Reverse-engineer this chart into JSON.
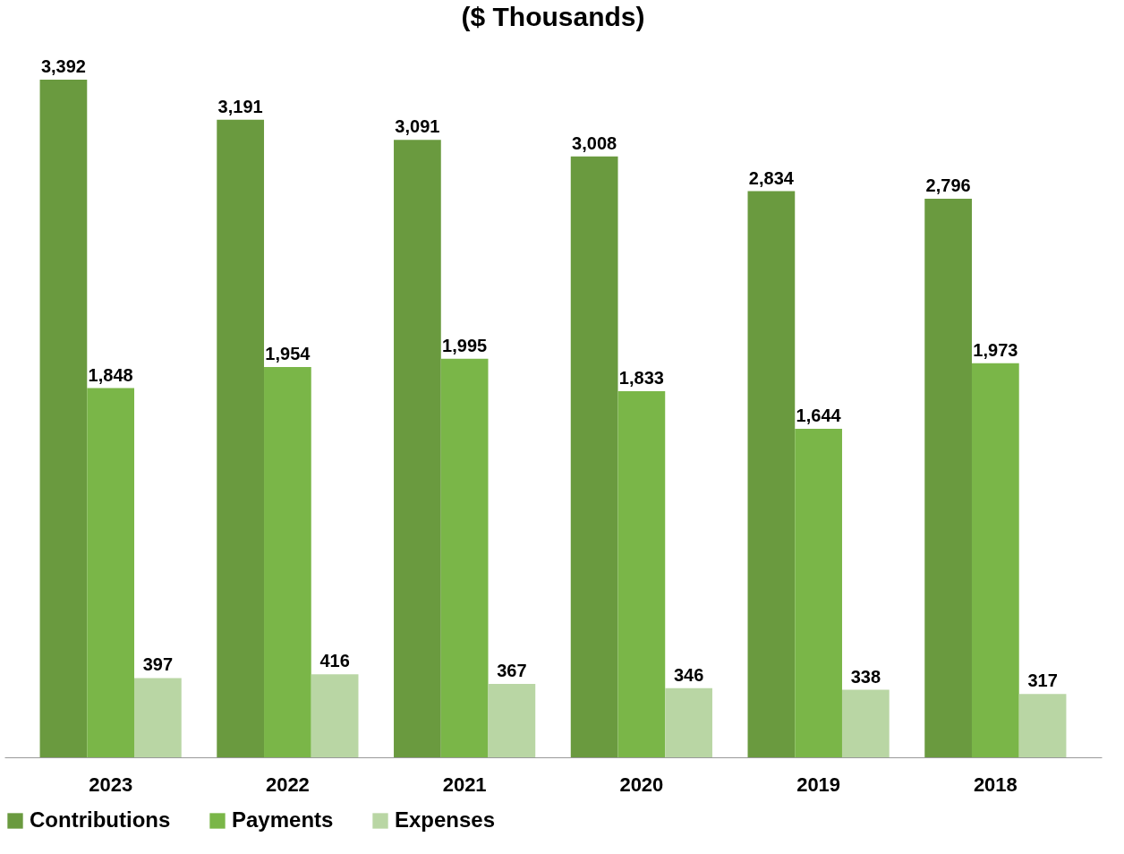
{
  "chart_data": {
    "type": "bar",
    "title": "($ Thousands)",
    "categories": [
      "2023",
      "2022",
      "2021",
      "2020",
      "2019",
      "2018"
    ],
    "series": [
      {
        "name": "Contributions",
        "color": "#6a9a3f",
        "values": [
          3392,
          3191,
          3091,
          3008,
          2834,
          2796
        ],
        "value_labels": [
          "3,392",
          "3,191",
          "3,091",
          "3,008",
          "2,834",
          "2,796"
        ]
      },
      {
        "name": "Payments",
        "color": "#7ab648",
        "values": [
          1848,
          1954,
          1995,
          1833,
          1644,
          1973
        ],
        "value_labels": [
          "1,848",
          "1,954",
          "1,995",
          "1,833",
          "1,644",
          "1,973"
        ]
      },
      {
        "name": "Expenses",
        "color": "#b9d6a4",
        "values": [
          397,
          416,
          367,
          346,
          338,
          317
        ],
        "value_labels": [
          "397",
          "416",
          "367",
          "346",
          "338",
          "317"
        ]
      }
    ],
    "legend": "bottom"
  }
}
